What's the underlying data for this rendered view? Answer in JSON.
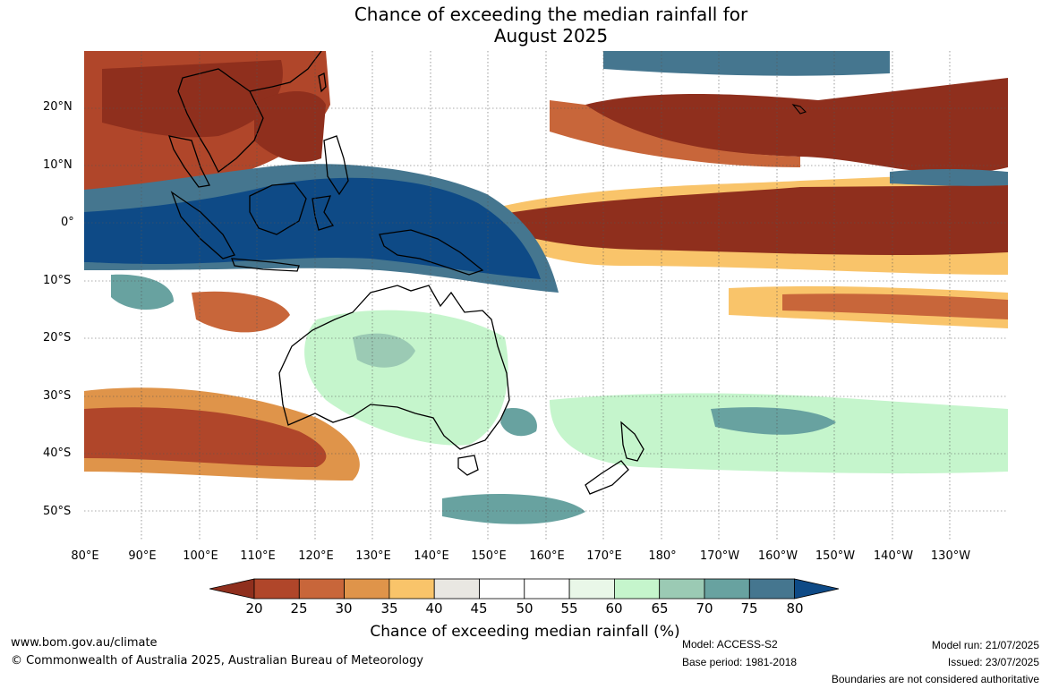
{
  "title": {
    "line1": "Chance of exceeding the median rainfall for",
    "line2": "August 2025"
  },
  "map": {
    "lat_labels": [
      "20°N",
      "10°N",
      "0°",
      "10°S",
      "20°S",
      "30°S",
      "40°S",
      "50°S"
    ],
    "lon_labels": [
      "80°E",
      "90°E",
      "100°E",
      "110°E",
      "120°E",
      "130°E",
      "140°E",
      "150°E",
      "160°E",
      "170°E",
      "180°",
      "170°W",
      "160°W",
      "150°W",
      "140°W",
      "130°W"
    ],
    "colors": {
      "lt20": "#8f2f1d",
      "c20_25": "#b0462a",
      "c25_30": "#c8663a",
      "c30_35": "#df944a",
      "c35_40": "#f9c46a",
      "c40_45": "#e9e7e2",
      "c45_55": "#ffffff",
      "c55_60": "#e9f7e8",
      "c60_65": "#c5f5cc",
      "c65_70": "#9bcab4",
      "c70_75": "#68a2a0",
      "c75_80": "#45768f",
      "gt80": "#0e4a86"
    }
  },
  "legend": {
    "ticks": [
      "20",
      "25",
      "30",
      "35",
      "40",
      "45",
      "50",
      "55",
      "60",
      "65",
      "70",
      "75",
      "80"
    ],
    "title": "Chance of exceeding median rainfall (%)"
  },
  "footer": {
    "website": "www.bom.gov.au/climate",
    "copyright": "© Commonwealth of Australia 2025, Australian Bureau of Meteorology",
    "model": "Model: ACCESS-S2",
    "base_period": "Base period: 1981-2018",
    "model_run": "Model run: 21/07/2025",
    "issued": "Issued: 23/07/2025",
    "disclaimer": "Boundaries are not considered authoritative"
  }
}
